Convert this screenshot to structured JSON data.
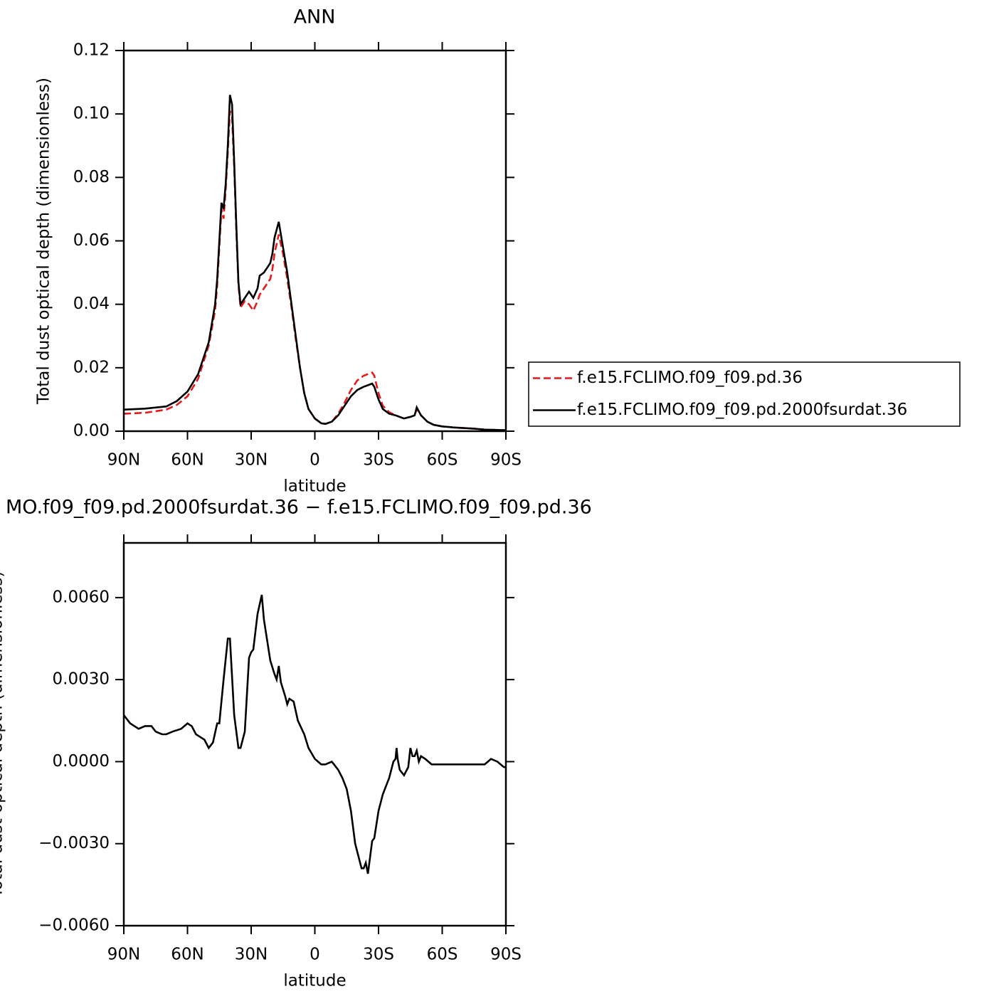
{
  "chart_data": [
    {
      "type": "line",
      "title": "ANN",
      "xlabel": "latitude",
      "ylabel": "Total dust optical depth (dimensionless)",
      "x": [
        90,
        80,
        70,
        65,
        60,
        55,
        50,
        47,
        46,
        45,
        44,
        43,
        42,
        41,
        40,
        39,
        38,
        37,
        36,
        35,
        33,
        31,
        29,
        27,
        26,
        24,
        22,
        21,
        20,
        19,
        17,
        15,
        13,
        11,
        9,
        7,
        5,
        3,
        0,
        -3,
        -5,
        -8,
        -11,
        -14,
        -17,
        -20,
        -23,
        -25,
        -27,
        -28,
        -30,
        -32,
        -35,
        -38,
        -40,
        -42,
        -45,
        -47,
        -48,
        -50,
        -53,
        -56,
        -60,
        -65,
        -70,
        -75,
        -80,
        -85,
        -90
      ],
      "series": [
        {
          "name": "f.e15.FCLIMO.f09_f09.pd.36",
          "color": "#e41a1c",
          "dash": true,
          "values": [
            0.0055,
            0.0058,
            0.0068,
            0.0083,
            0.011,
            0.0165,
            0.027,
            0.038,
            0.046,
            0.058,
            0.07,
            0.067,
            0.076,
            0.088,
            0.101,
            0.099,
            0.083,
            0.063,
            0.046,
            0.039,
            0.041,
            0.04,
            0.038,
            0.041,
            0.043,
            0.045,
            0.047,
            0.048,
            0.051,
            0.056,
            0.062,
            0.056,
            0.048,
            0.039,
            0.029,
            0.02,
            0.012,
            0.007,
            0.004,
            0.0025,
            0.0023,
            0.003,
            0.0055,
            0.009,
            0.013,
            0.016,
            0.0175,
            0.018,
            0.0185,
            0.0175,
            0.012,
            0.008,
            0.006,
            0.005,
            0.0045,
            0.004,
            0.0045,
            0.005,
            0.007,
            0.005,
            0.003,
            0.002,
            0.0015,
            0.0012,
            0.001,
            0.0008,
            0.0005,
            0.0004,
            0.0003
          ]
        },
        {
          "name": "f.e15.FCLIMO.f09_f09.pd.2000fsurdat.36",
          "color": "#000000",
          "dash": false,
          "values": [
            0.0068,
            0.0071,
            0.0078,
            0.0095,
            0.0125,
            0.018,
            0.028,
            0.04,
            0.048,
            0.06,
            0.072,
            0.07,
            0.078,
            0.09,
            0.106,
            0.103,
            0.085,
            0.065,
            0.047,
            0.04,
            0.042,
            0.044,
            0.042,
            0.045,
            0.049,
            0.05,
            0.052,
            0.053,
            0.056,
            0.061,
            0.066,
            0.058,
            0.05,
            0.04,
            0.03,
            0.02,
            0.012,
            0.007,
            0.004,
            0.0025,
            0.0023,
            0.003,
            0.005,
            0.008,
            0.011,
            0.013,
            0.014,
            0.0145,
            0.015,
            0.014,
            0.01,
            0.007,
            0.0055,
            0.005,
            0.0045,
            0.004,
            0.0045,
            0.005,
            0.0075,
            0.005,
            0.003,
            0.002,
            0.0015,
            0.0012,
            0.001,
            0.0008,
            0.0005,
            0.0004,
            0.0003
          ]
        }
      ],
      "xlim": [
        90,
        -90
      ],
      "xticks": [
        {
          "value": 90,
          "label": "90N"
        },
        {
          "value": 60,
          "label": "60N"
        },
        {
          "value": 30,
          "label": "30N"
        },
        0,
        {
          "value": -30,
          "label": "30S"
        },
        {
          "value": -60,
          "label": "60S"
        },
        {
          "value": -90,
          "label": "90S"
        }
      ],
      "ylim": [
        0,
        0.12
      ],
      "yticks": [
        {
          "value": 0,
          "label": "0.00"
        },
        {
          "value": 0.02,
          "label": "0.02"
        },
        {
          "value": 0.04,
          "label": "0.04"
        },
        {
          "value": 0.06,
          "label": "0.06"
        },
        {
          "value": 0.08,
          "label": "0.08"
        },
        {
          "value": 0.1,
          "label": "0.10"
        },
        {
          "value": 0.12,
          "label": "0.12"
        }
      ],
      "legend": "right"
    },
    {
      "type": "line",
      "title": "MO.f09_f09.pd.2000fsurdat.36 − f.e15.FCLIMO.f09_f09.pd.36",
      "xlabel": "latitude",
      "ylabel": "Total dust optical depth (dimensionless)",
      "x": [
        90,
        87,
        83,
        80,
        77,
        75,
        72,
        70,
        67,
        63,
        60,
        58,
        56,
        54,
        52,
        50,
        48,
        46,
        45,
        43,
        41,
        40,
        38,
        36,
        35,
        33,
        31,
        30,
        29,
        27,
        25,
        24,
        21,
        19,
        18,
        17,
        16,
        14,
        13,
        12,
        10,
        8,
        5,
        3,
        0,
        -3,
        -5,
        -8,
        -11,
        -13,
        -15,
        -17,
        -19,
        -21,
        -22,
        -23,
        -24,
        -25,
        -26,
        -27,
        -28,
        -30,
        -32,
        -35,
        -36,
        -37,
        -38,
        -38.5,
        -39,
        -40,
        -42,
        -44,
        -45,
        -46,
        -47,
        -48,
        -49,
        -50,
        -52,
        -55,
        -60,
        -65,
        -70,
        -75,
        -80,
        -83,
        -86,
        -89,
        -90
      ],
      "color": "#000000",
      "values": [
        0.0017,
        0.0014,
        0.0012,
        0.0013,
        0.0013,
        0.0011,
        0.001,
        0.001,
        0.0011,
        0.0012,
        0.0014,
        0.0013,
        0.001,
        0.0009,
        0.0008,
        0.0005,
        0.0007,
        0.0014,
        0.0014,
        0.003,
        0.0045,
        0.0045,
        0.0017,
        0.0005,
        0.0005,
        0.0011,
        0.0038,
        0.004,
        0.0041,
        0.0054,
        0.0061,
        0.0052,
        0.0037,
        0.0032,
        0.003,
        0.0035,
        0.0029,
        0.0024,
        0.0021,
        0.0023,
        0.0022,
        0.0015,
        0.001,
        0.0005,
        0.0001,
        -0.0001,
        -0.0001,
        0,
        -0.0003,
        -0.0006,
        -0.001,
        -0.0018,
        -0.003,
        -0.0036,
        -0.0039,
        -0.0039,
        -0.0037,
        -0.0041,
        -0.0035,
        -0.0029,
        -0.0028,
        -0.0018,
        -0.0012,
        -0.0006,
        -0.0003,
        0,
        0.0001,
        0.0005,
        0.0001,
        -0.0003,
        -0.0005,
        -0.0002,
        0.0005,
        0.0002,
        0.0002,
        0.0004,
        0,
        0.0002,
        0.0001,
        -0.0001,
        -0.0001,
        -0.0001,
        -0.0001,
        -0.0001,
        -0.0001,
        0.0001,
        0,
        -0.0002,
        -0.0002
      ],
      "xlim": [
        90,
        -90
      ],
      "xticks": [
        {
          "value": 90,
          "label": "90N"
        },
        {
          "value": 60,
          "label": "60N"
        },
        {
          "value": 30,
          "label": "30N"
        },
        0,
        {
          "value": -30,
          "label": "30S"
        },
        {
          "value": -60,
          "label": "60S"
        },
        {
          "value": -90,
          "label": "90S"
        }
      ],
      "ylim": [
        -0.006,
        0.008
      ],
      "yticks": [
        {
          "value": -0.006,
          "label": "−0.0060"
        },
        {
          "value": -0.003,
          "label": "−0.0030"
        },
        {
          "value": 0,
          "label": "0.0000"
        },
        {
          "value": 0.003,
          "label": "0.0030"
        },
        {
          "value": 0.006,
          "label": "0.0060"
        }
      ]
    }
  ]
}
